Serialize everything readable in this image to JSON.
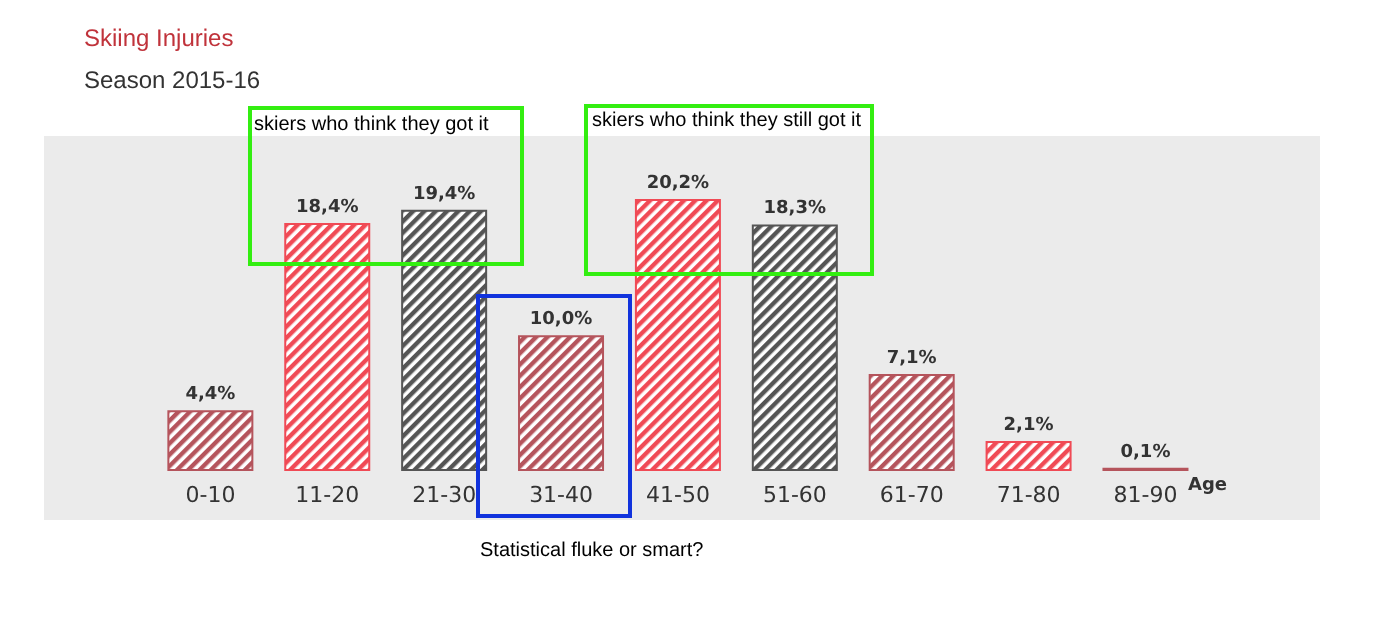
{
  "chart_data": {
    "type": "bar",
    "title": "Skiing Injuries",
    "subtitle": "Season 2015-16",
    "xlabel": "Age",
    "categories": [
      "0-10",
      "11-20",
      "21-30",
      "31-40",
      "41-50",
      "51-60",
      "61-70",
      "71-80",
      "81-90"
    ],
    "values": [
      4.4,
      18.4,
      19.4,
      10.0,
      20.2,
      18.3,
      7.1,
      2.1,
      0.1
    ],
    "value_labels": [
      "4,4%",
      "18,4%",
      "19,4%",
      "10,0%",
      "20,2%",
      "18,3%",
      "7,1%",
      "2,1%",
      "0,1%"
    ],
    "colors": [
      "#b5545c",
      "#f04a55",
      "#555555",
      "#b5545c",
      "#f04a55",
      "#555555",
      "#b5545c",
      "#f04a55",
      "#b5545c"
    ],
    "annotations": [
      "skiers who think they got it",
      "skiers who think they still got it",
      "Statistical fluke or smart?"
    ],
    "grid": false,
    "legend": false
  }
}
